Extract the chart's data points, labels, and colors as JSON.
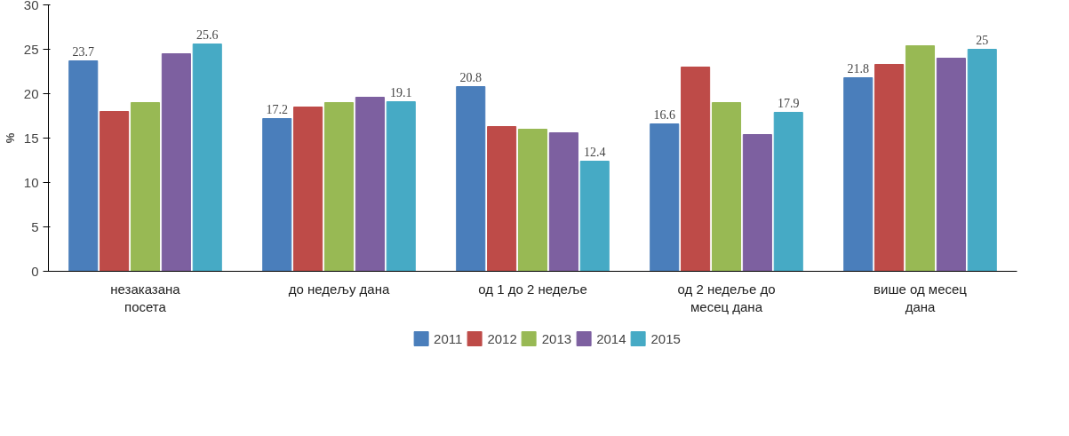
{
  "chart_data": {
    "type": "bar",
    "ylabel": "%",
    "categories": [
      "незаказана\nпосета",
      "до недељу дана",
      "од 1 до 2 недеље",
      "од 2 недеље до\nмесец дана",
      "више од месец\nдана"
    ],
    "ylim": [
      0,
      30
    ],
    "yticks": [
      0,
      5,
      10,
      15,
      20,
      25,
      30
    ],
    "grid": false,
    "legend": "bottom",
    "series": [
      {
        "name": "2011",
        "color": "#4a7ebb",
        "values": [
          23.7,
          17.2,
          20.8,
          16.6,
          21.8
        ],
        "value_labels": [
          "23.7",
          "17.2",
          "20.8",
          "16.6",
          "21.8"
        ]
      },
      {
        "name": "2012",
        "color": "#be4b48",
        "values": [
          18,
          18.5,
          16.3,
          23,
          23.3
        ]
      },
      {
        "name": "2013",
        "color": "#98b954",
        "values": [
          19,
          19,
          16,
          19,
          25.4
        ]
      },
      {
        "name": "2014",
        "color": "#7d60a0",
        "values": [
          24.5,
          19.6,
          15.6,
          15.4,
          24
        ]
      },
      {
        "name": "2015",
        "color": "#46aac5",
        "values": [
          25.6,
          19.1,
          12.4,
          17.9,
          25
        ],
        "value_labels": [
          "25.6",
          "19.1",
          "12.4",
          "17.9",
          "25"
        ]
      }
    ]
  }
}
